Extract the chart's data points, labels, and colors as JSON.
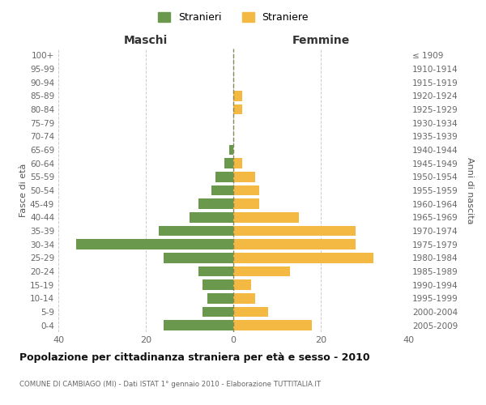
{
  "age_groups": [
    "0-4",
    "5-9",
    "10-14",
    "15-19",
    "20-24",
    "25-29",
    "30-34",
    "35-39",
    "40-44",
    "45-49",
    "50-54",
    "55-59",
    "60-64",
    "65-69",
    "70-74",
    "75-79",
    "80-84",
    "85-89",
    "90-94",
    "95-99",
    "100+"
  ],
  "birth_years": [
    "2005-2009",
    "2000-2004",
    "1995-1999",
    "1990-1994",
    "1985-1989",
    "1980-1984",
    "1975-1979",
    "1970-1974",
    "1965-1969",
    "1960-1964",
    "1955-1959",
    "1950-1954",
    "1945-1949",
    "1940-1944",
    "1935-1939",
    "1930-1934",
    "1925-1929",
    "1920-1924",
    "1915-1919",
    "1910-1914",
    "≤ 1909"
  ],
  "maschi": [
    16,
    7,
    6,
    7,
    8,
    16,
    36,
    17,
    10,
    8,
    5,
    4,
    2,
    1,
    0,
    0,
    0,
    0,
    0,
    0,
    0
  ],
  "femmine": [
    18,
    8,
    5,
    4,
    13,
    32,
    28,
    28,
    15,
    6,
    6,
    5,
    2,
    0,
    0,
    0,
    2,
    2,
    0,
    0,
    0
  ],
  "color_maschi": "#6a994e",
  "color_femmine": "#f4b942",
  "title": "Popolazione per cittadinanza straniera per età e sesso - 2010",
  "subtitle": "COMUNE DI CAMBIAGO (MI) - Dati ISTAT 1° gennaio 2010 - Elaborazione TUTTITALIA.IT",
  "xlabel_left": "Maschi",
  "xlabel_right": "Femmine",
  "ylabel_left": "Fasce di età",
  "ylabel_right": "Anni di nascita",
  "legend_maschi": "Stranieri",
  "legend_femmine": "Straniere",
  "xlim": 40,
  "background_color": "#ffffff",
  "grid_color": "#cccccc"
}
